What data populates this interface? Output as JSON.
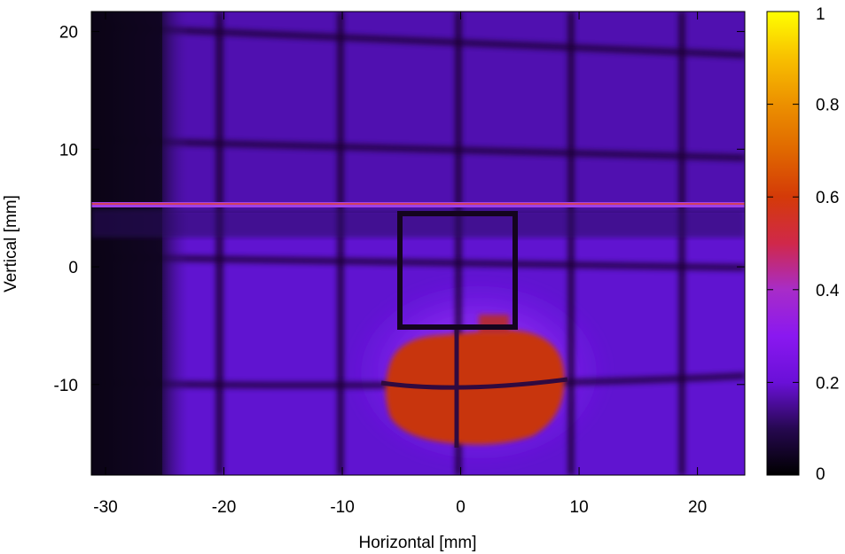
{
  "chart_data": {
    "type": "heatmap",
    "title": "",
    "xlabel": "Horizontal [mm]",
    "ylabel": "Vertical [mm]",
    "xlim": [
      -31.2,
      24
    ],
    "ylim": [
      -17.7,
      21.7
    ],
    "x_ticks": [
      -30,
      -20,
      -10,
      0,
      10,
      20
    ],
    "y_ticks": [
      -10,
      0,
      10,
      20
    ],
    "grid": false,
    "colorbar": {
      "range": [
        0,
        1
      ],
      "ticks": [
        0,
        0.2,
        0.4,
        0.6,
        0.8,
        1
      ],
      "palette": [
        "#000000",
        "#3a0a78",
        "#8000ff",
        "#b82bc8",
        "#d42a10",
        "#e67800",
        "#ffb000",
        "#ffff00"
      ]
    },
    "features": {
      "background_level": 0.2,
      "dark_left_band_x": [
        -31.2,
        -24
      ],
      "bright_line_y": 5.1,
      "rectangle_outline": {
        "x": [
          -5,
          4.6
        ],
        "y": [
          -5.3,
          4.3
        ]
      },
      "hot_region": {
        "x": [
          -6,
          8.5
        ],
        "y": [
          -15,
          -5.5
        ],
        "level": 0.55
      },
      "grid_wire_x": [
        -20.5,
        -10,
        0,
        9.5,
        18.5
      ],
      "grid_wire_y": [
        19.5,
        9.5,
        0,
        -10.5
      ]
    },
    "tick_text": {
      "x": [
        "-30",
        "-20",
        "-10",
        "0",
        "10",
        "20"
      ],
      "y": [
        "-10",
        "0",
        "10",
        "20"
      ],
      "cb": [
        "0",
        "0.2",
        "0.4",
        "0.6",
        "0.8",
        "1"
      ]
    }
  }
}
